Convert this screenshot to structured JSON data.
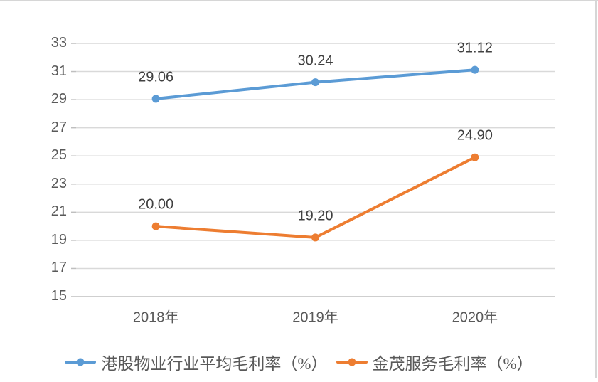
{
  "chart_data": {
    "type": "line",
    "categories": [
      "2018年",
      "2019年",
      "2020年"
    ],
    "series": [
      {
        "name": "港股物业行业平均毛利率（%）",
        "values": [
          29.06,
          30.24,
          31.12
        ],
        "labels": [
          "29.06",
          "30.24",
          "31.12"
        ],
        "color": "#5B9BD5"
      },
      {
        "name": "金茂服务毛利率（%）",
        "values": [
          20.0,
          19.2,
          24.9
        ],
        "labels": [
          "20.00",
          "19.20",
          "24.90"
        ],
        "color": "#ED7D31"
      }
    ],
    "title": "",
    "xlabel": "",
    "ylabel": "",
    "ylim": [
      15,
      33
    ],
    "ytick_values": [
      33,
      31,
      29,
      27,
      25,
      23,
      21,
      19,
      17,
      15
    ],
    "ytick_labels": [
      "33",
      "31",
      "29",
      "27",
      "25",
      "23",
      "21",
      "19",
      "17",
      "15"
    ],
    "grid": true,
    "legend_position": "bottom",
    "marker_style": "circle"
  },
  "colors": {
    "series_blue": "#5B9BD5",
    "series_orange": "#ED7D31",
    "gridline": "#D9D9D9",
    "axis_line": "#BFBFBF",
    "tick_label": "#595959",
    "data_label": "#404040",
    "frame_border": "#D6D6D6",
    "background": "#FFFFFF"
  }
}
